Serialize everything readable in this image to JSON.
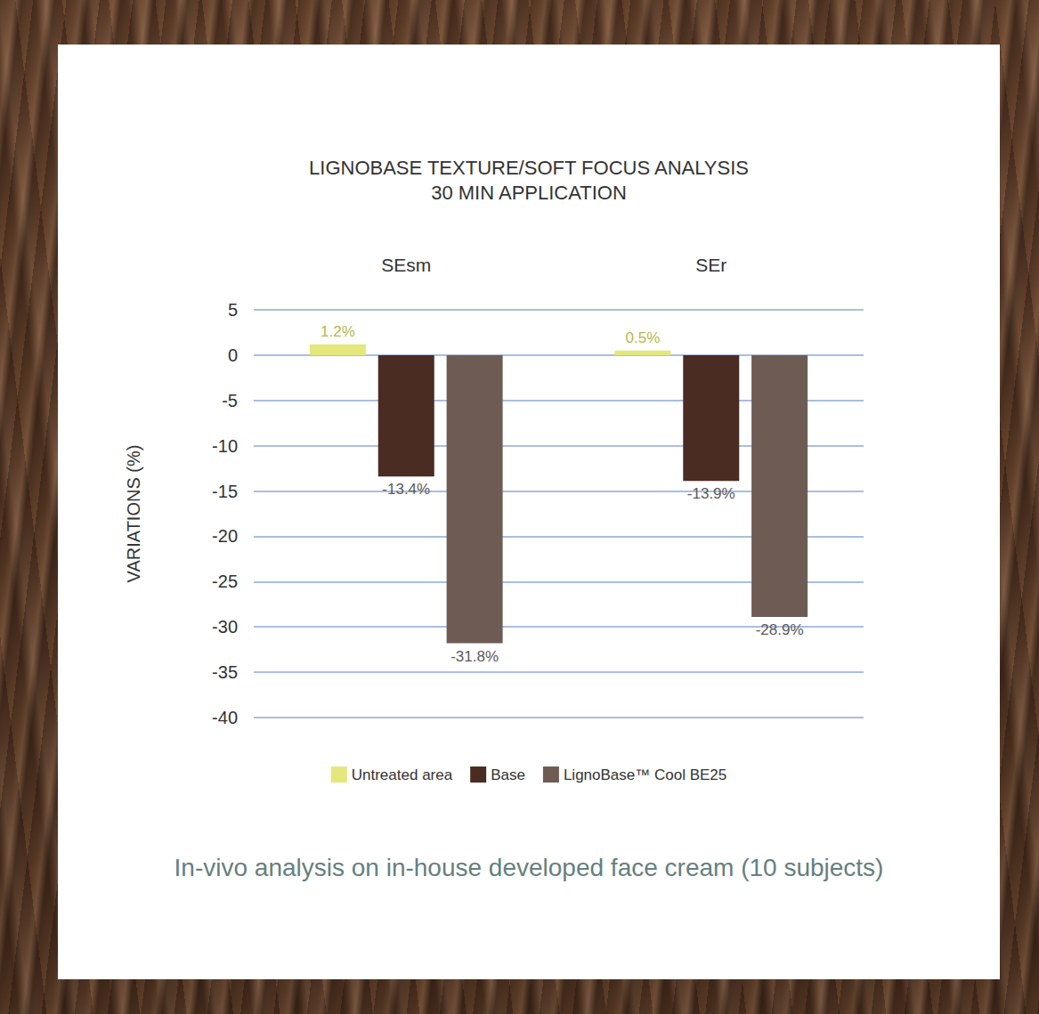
{
  "chart_data": {
    "type": "bar",
    "title": "LIGNOBASE TEXTURE/SOFT FOCUS ANALYSIS",
    "subtitle": "30 MIN APPLICATION",
    "caption": "In-vivo analysis on in-house developed face cream (10 subjects)",
    "y_label": "VARIATIONS (%)",
    "categories": [
      "SEsm",
      "SEr"
    ],
    "series": [
      {
        "name": "Untreated area",
        "color": "#e3e77c",
        "values": [
          1.2,
          0.5
        ],
        "value_labels": [
          "1.2%",
          "0.5%"
        ]
      },
      {
        "name": "Base",
        "color": "#4a2c22",
        "values": [
          -13.4,
          -13.9
        ],
        "value_labels": [
          "-13.4%",
          "-13.9%"
        ]
      },
      {
        "name": "LignoBase™ Cool BE25",
        "color": "#6e5c54",
        "values": [
          -31.8,
          -28.9
        ],
        "value_labels": [
          "-31.8%",
          "-28.9%"
        ]
      }
    ],
    "ylim": [
      -40,
      5
    ],
    "yticks": [
      -40,
      -35,
      -30,
      -25,
      -20,
      -15,
      -10,
      -5,
      0,
      5
    ],
    "grid": true,
    "legend": "bottom",
    "data_labels": true
  }
}
